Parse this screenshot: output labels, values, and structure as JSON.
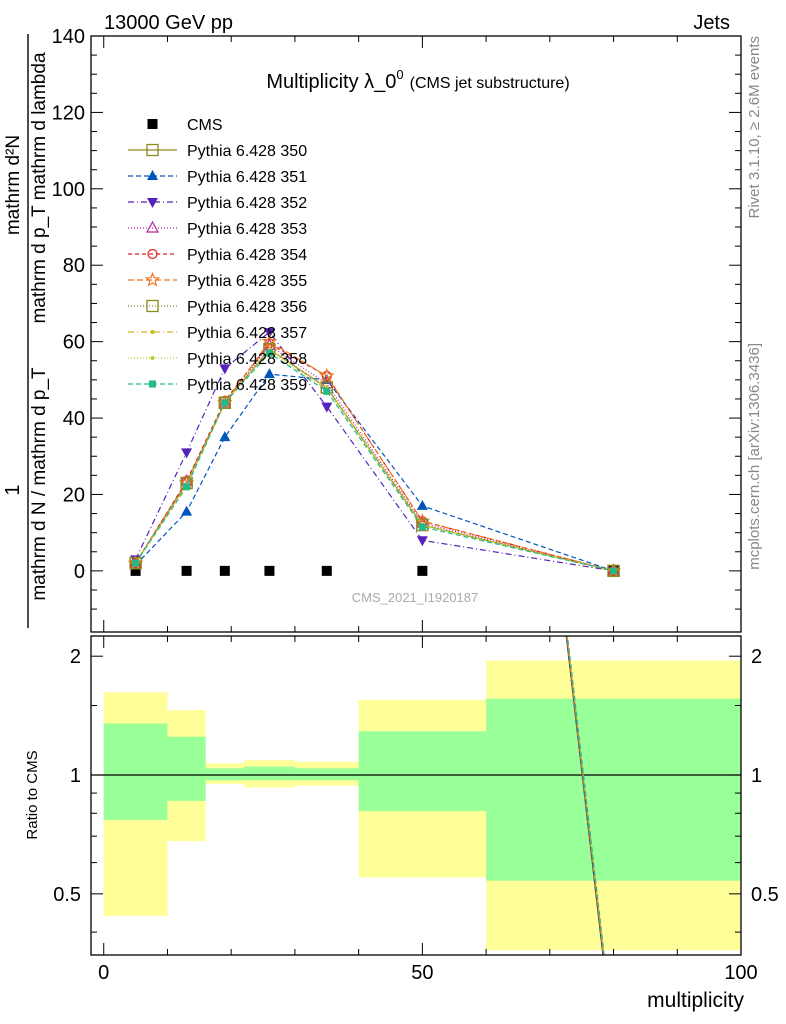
{
  "header": {
    "left": "13000 GeV pp",
    "right": "Jets"
  },
  "side_labels": {
    "rivet": "Rivet 3.1.10, ≥ 2.6M events",
    "mcplots": "mcplots.cern.ch [arXiv:1306.3436]"
  },
  "chart_data": {
    "type": "line",
    "title": "Multiplicity λ_0",
    "title_superscript": "0",
    "title_suffix": "(CMS jet substructure)",
    "watermark": "CMS_2021_I1920187",
    "xlabel": "multiplicity",
    "ylabel_numerator": "mathrm d²N",
    "ylabel_denominator": "mathrm d p_T mathrm d lambda",
    "ylabel_lead": "1",
    "ylabel_lead_denominator": "mathrm d N / mathrm d p_T",
    "xlim": [
      -2,
      100
    ],
    "ylim": [
      -16,
      140
    ],
    "xticks": [
      0,
      50,
      100
    ],
    "yticks": [
      0,
      20,
      40,
      60,
      80,
      100,
      120,
      140
    ],
    "bins": [
      [
        0,
        10
      ],
      [
        10,
        16
      ],
      [
        16,
        22
      ],
      [
        22,
        30
      ],
      [
        30,
        40
      ],
      [
        40,
        60
      ],
      [
        60,
        100
      ]
    ],
    "x": [
      5,
      13,
      19,
      26,
      35,
      50,
      80
    ],
    "cms": {
      "name": "CMS",
      "color": "#000000",
      "values": [
        0,
        0,
        0,
        0,
        0,
        0,
        0
      ]
    },
    "series": [
      {
        "name": "Pythia 6.428 350",
        "color": "#8c8c1e",
        "marker": "square-open",
        "dash": "solid",
        "values": [
          2,
          23,
          44,
          58,
          48,
          12,
          0
        ]
      },
      {
        "name": "Pythia 6.428 351",
        "color": "#0055bb",
        "marker": "triangle-up",
        "dash": "5,3",
        "values": [
          1.5,
          15.5,
          35,
          51.5,
          50,
          17,
          0
        ]
      },
      {
        "name": "Pythia 6.428 352",
        "color": "#5522bb",
        "marker": "triangle-down",
        "dash": "6,3,1,3",
        "values": [
          3,
          31,
          53,
          62.5,
          43,
          8,
          0
        ]
      },
      {
        "name": "Pythia 6.428 353",
        "color": "#bb2299",
        "marker": "triangle-open",
        "dash": "1,2",
        "values": [
          2,
          23.5,
          44,
          59,
          49,
          12.5,
          0
        ]
      },
      {
        "name": "Pythia 6.428 354",
        "color": "#dd2222",
        "marker": "circle-open",
        "dash": "4,3",
        "values": [
          2,
          23.5,
          44.5,
          59.5,
          51,
          13,
          0
        ]
      },
      {
        "name": "Pythia 6.428 355",
        "color": "#ee7722",
        "marker": "star-open",
        "dash": "6,3",
        "values": [
          2,
          23,
          44,
          60,
          51,
          13,
          0
        ]
      },
      {
        "name": "Pythia 6.428 356",
        "color": "#8c8c1e",
        "marker": "square-open",
        "dash": "1,2",
        "values": [
          2,
          23,
          44,
          58,
          48,
          12,
          0
        ]
      },
      {
        "name": "Pythia 6.428 357",
        "color": "#ccbb22",
        "marker": "dot",
        "dash": "6,3,1,3",
        "values": [
          2,
          22.5,
          44,
          58,
          48,
          12,
          0
        ]
      },
      {
        "name": "Pythia 6.428 358",
        "color": "#bbcc33",
        "marker": "dot",
        "dash": "1,2",
        "values": [
          2,
          22.5,
          44,
          57.5,
          47.5,
          12,
          0
        ]
      },
      {
        "name": "Pythia 6.428 359",
        "color": "#22bb88",
        "marker": "square-filled",
        "dash": "5,3",
        "values": [
          2,
          22,
          44,
          57,
          47,
          11.5,
          0
        ]
      }
    ],
    "ratio": {
      "ylabel": "Ratio to CMS",
      "ylim": [
        0.35,
        2.25
      ],
      "yticks": [
        0.5,
        1,
        2
      ],
      "scale": "log",
      "inner_band": [
        [
          0.77,
          1.35
        ],
        [
          0.86,
          1.25
        ],
        [
          0.97,
          1.04
        ],
        [
          0.97,
          1.05
        ],
        [
          0.97,
          1.04
        ],
        [
          0.81,
          1.29
        ],
        [
          0.54,
          1.56
        ]
      ],
      "outer_band": [
        [
          0.44,
          1.62
        ],
        [
          0.68,
          1.46
        ],
        [
          0.95,
          1.07
        ],
        [
          0.93,
          1.09
        ],
        [
          0.94,
          1.08
        ],
        [
          0.55,
          1.55
        ],
        [
          0.36,
          1.95
        ]
      ],
      "inner_color": "#99ff99",
      "outer_color": "#ffff99",
      "mc_line": {
        "x": [
          72.5,
          78.5
        ],
        "y": [
          2.3,
          0.33
        ]
      }
    }
  }
}
